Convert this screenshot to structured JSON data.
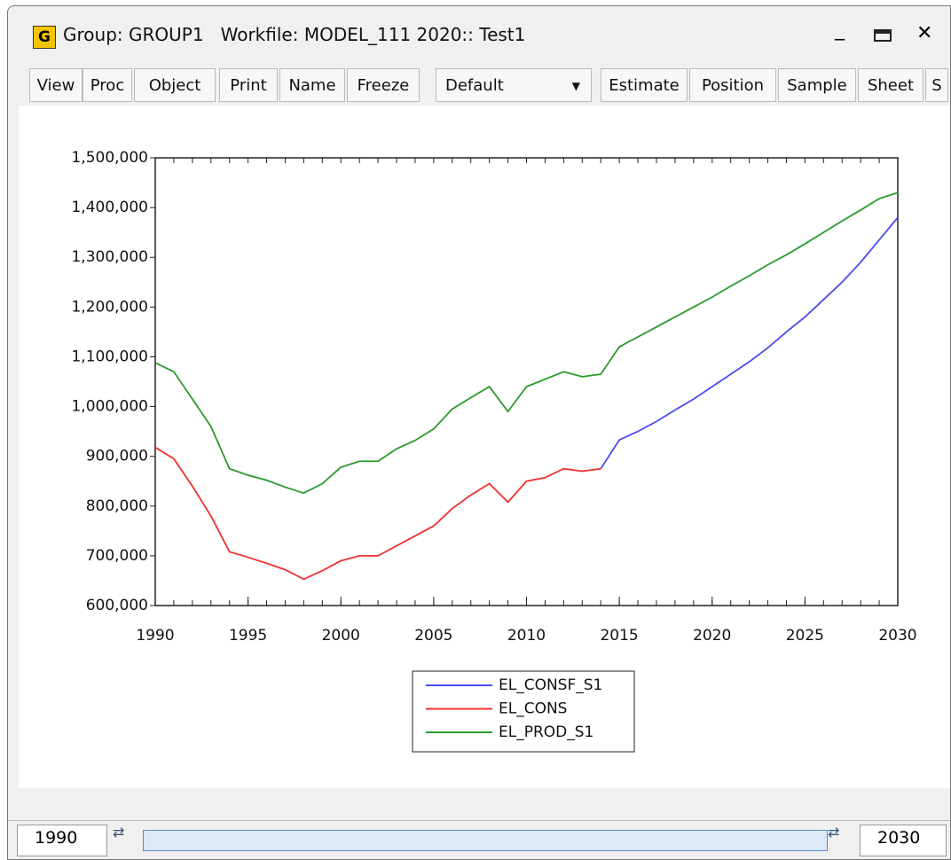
{
  "window": {
    "icon": "G",
    "title": "Group: GROUP1   Workfile: MODEL_111 2020:: Test1",
    "toolbar": [
      "View",
      "Proc",
      "Object",
      "Print",
      "Name",
      "Freeze",
      "Default",
      "Estimate",
      "Position",
      "Sample",
      "Sheet",
      "S"
    ],
    "range_start": "1990",
    "range_end": "2030"
  },
  "chart_data": {
    "type": "line",
    "x": [
      1990,
      1991,
      1992,
      1993,
      1994,
      1995,
      1996,
      1997,
      1998,
      1999,
      2000,
      2001,
      2002,
      2003,
      2004,
      2005,
      2006,
      2007,
      2008,
      2009,
      2010,
      2011,
      2012,
      2013,
      2014,
      2015,
      2016,
      2017,
      2018,
      2019,
      2020,
      2021,
      2022,
      2023,
      2024,
      2025,
      2026,
      2027,
      2028,
      2029,
      2030
    ],
    "series": [
      {
        "name": "EL_CONSF_S1",
        "color": "#4a4af0",
        "values": [
          null,
          null,
          null,
          null,
          null,
          null,
          null,
          null,
          null,
          null,
          null,
          null,
          null,
          null,
          null,
          null,
          null,
          null,
          null,
          null,
          null,
          null,
          null,
          null,
          875000,
          933000,
          950000,
          970000,
          993000,
          1015000,
          1040000,
          1065000,
          1090000,
          1118000,
          1150000,
          1180000,
          1215000,
          1250000,
          1290000,
          1335000,
          1380000
        ]
      },
      {
        "name": "EL_CONS",
        "color": "#f03030",
        "values": [
          918000,
          895000,
          840000,
          780000,
          708000,
          697000,
          685000,
          672000,
          653000,
          670000,
          690000,
          700000,
          700000,
          720000,
          740000,
          760000,
          795000,
          822000,
          845000,
          808000,
          850000,
          857000,
          875000,
          870000,
          875000,
          null,
          null,
          null,
          null,
          null,
          null,
          null,
          null,
          null,
          null,
          null,
          null,
          null,
          null,
          null,
          null
        ]
      },
      {
        "name": "EL_PROD_S1",
        "color": "#2a9a2a",
        "values": [
          1088000,
          1070000,
          1015000,
          960000,
          875000,
          862000,
          852000,
          838000,
          826000,
          845000,
          878000,
          890000,
          890000,
          915000,
          932000,
          955000,
          995000,
          1018000,
          1040000,
          990000,
          1040000,
          1055000,
          1070000,
          1060000,
          1065000,
          1120000,
          1140000,
          1160000,
          1180000,
          1200000,
          1220000,
          1242000,
          1263000,
          1285000,
          1305000,
          1327000,
          1350000,
          1373000,
          1395000,
          1418000,
          1430000
        ]
      }
    ],
    "xlim": [
      1990,
      2030
    ],
    "xticks": [
      1990,
      1995,
      2000,
      2005,
      2010,
      2015,
      2020,
      2025,
      2030
    ],
    "ylim": [
      600000,
      1500000
    ],
    "yticks": [
      {
        "value": 600000,
        "label": "600,000"
      },
      {
        "value": 700000,
        "label": "700,000"
      },
      {
        "value": 800000,
        "label": "800,000"
      },
      {
        "value": 900000,
        "label": "900,000"
      },
      {
        "value": 1000000,
        "label": "1,000,000"
      },
      {
        "value": 1100000,
        "label": "1,100,000"
      },
      {
        "value": 1200000,
        "label": "1,200,000"
      },
      {
        "value": 1300000,
        "label": "1,300,000"
      },
      {
        "value": 1400000,
        "label": "1,400,000"
      },
      {
        "value": 1500000,
        "label": "1,500,000"
      }
    ],
    "grid": false,
    "legend": "bottom"
  }
}
